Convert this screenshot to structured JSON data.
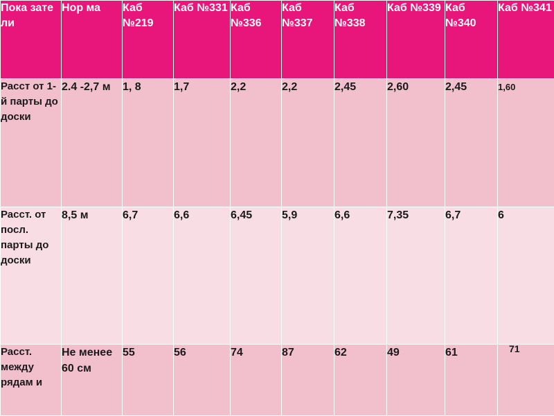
{
  "table": {
    "headers": [
      "Пока зате ли",
      "Нор ма",
      "Каб №219",
      "Каб №331",
      "Каб №336",
      "Каб №337",
      "Каб №338",
      "Каб №339",
      "Каб №340",
      "Каб №341"
    ],
    "rows": [
      {
        "label": "Расст от 1-й парты до доски",
        "norm": "2.4 -2,7 м",
        "values": [
          "1, 8",
          "1,7",
          "2,2",
          "2,2",
          "2,45",
          "2,60",
          "2,45",
          "1,60"
        ]
      },
      {
        "label": "Расст. от посл. парты до доски",
        "norm": "8,5 м",
        "values": [
          "6,7",
          "6,6",
          "6,45",
          "5,9",
          "6,6",
          "7,35",
          "6,7",
          "6"
        ]
      },
      {
        "label": "Расст. между рядам и",
        "norm": "Не менее 60 см",
        "values": [
          "55",
          "56",
          "74",
          "87",
          "62",
          "49",
          "61",
          "71"
        ]
      }
    ]
  },
  "colors": {
    "header_bg": "#e8157a",
    "row_dark": "#f2bfcc",
    "row_light": "#f8dde5",
    "header_text": "#ffffff",
    "body_text": "#1a1a1a"
  }
}
